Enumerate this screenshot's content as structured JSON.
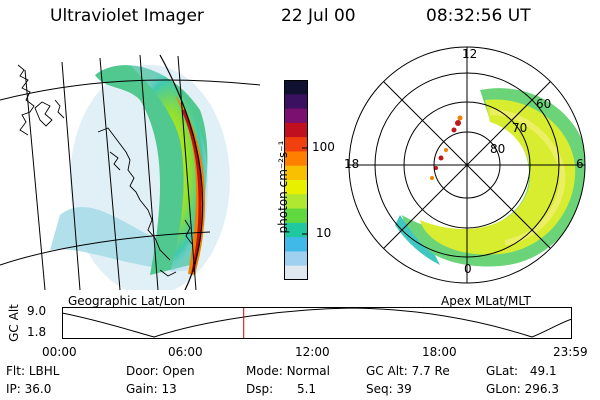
{
  "header": {
    "instrument": "Ultraviolet Imager",
    "date": "22 Jul 00",
    "time": "08:32:56 UT"
  },
  "colorbar": {
    "unit_label": "photon cm⁻²s⁻¹",
    "ticks": [
      "100",
      "10"
    ],
    "colors": [
      "#101030",
      "#3a1060",
      "#7a1070",
      "#c01020",
      "#f04010",
      "#ff8000",
      "#f8c000",
      "#e8f000",
      "#b0e830",
      "#60d840",
      "#20c8a0",
      "#40b8e8",
      "#a0d0f0",
      "#e0e8f0"
    ]
  },
  "left_map": {
    "caption": "Geographic Lat/Lon"
  },
  "polar_plot": {
    "caption": "Apex MLat/MLT",
    "mlt_labels": {
      "top": "12",
      "left": "18",
      "right": "6",
      "bottom": "0"
    },
    "lat_labels": [
      "60",
      "70",
      "80"
    ]
  },
  "orbit_plot": {
    "ylabel": "GC Alt",
    "yticks": [
      "9.0",
      "1.8"
    ],
    "xticks": [
      "00:00",
      "06:00",
      "12:00",
      "18:00",
      "23:59"
    ],
    "current_time_fraction": 0.3563,
    "marker_color": "#d00000"
  },
  "status": {
    "flt_label": "Flt:",
    "flt_value": "LBHL",
    "ip_label": "IP:",
    "ip_value": "36.0",
    "door_label": "Door:",
    "door_value": "Open",
    "gain_label": "Gain:",
    "gain_value": "13",
    "mode_label": "Mode:",
    "mode_value": "Normal",
    "dsp_label": "Dsp:",
    "dsp_value": "5.1",
    "gcalt_label": "GC Alt:",
    "gcalt_value": "7.7 Re",
    "seq_label": "Seq:",
    "seq_value": "39",
    "glat_label": "GLat:",
    "glat_value": "49.1",
    "glon_label": "GLon:",
    "glon_value": "296.3"
  }
}
